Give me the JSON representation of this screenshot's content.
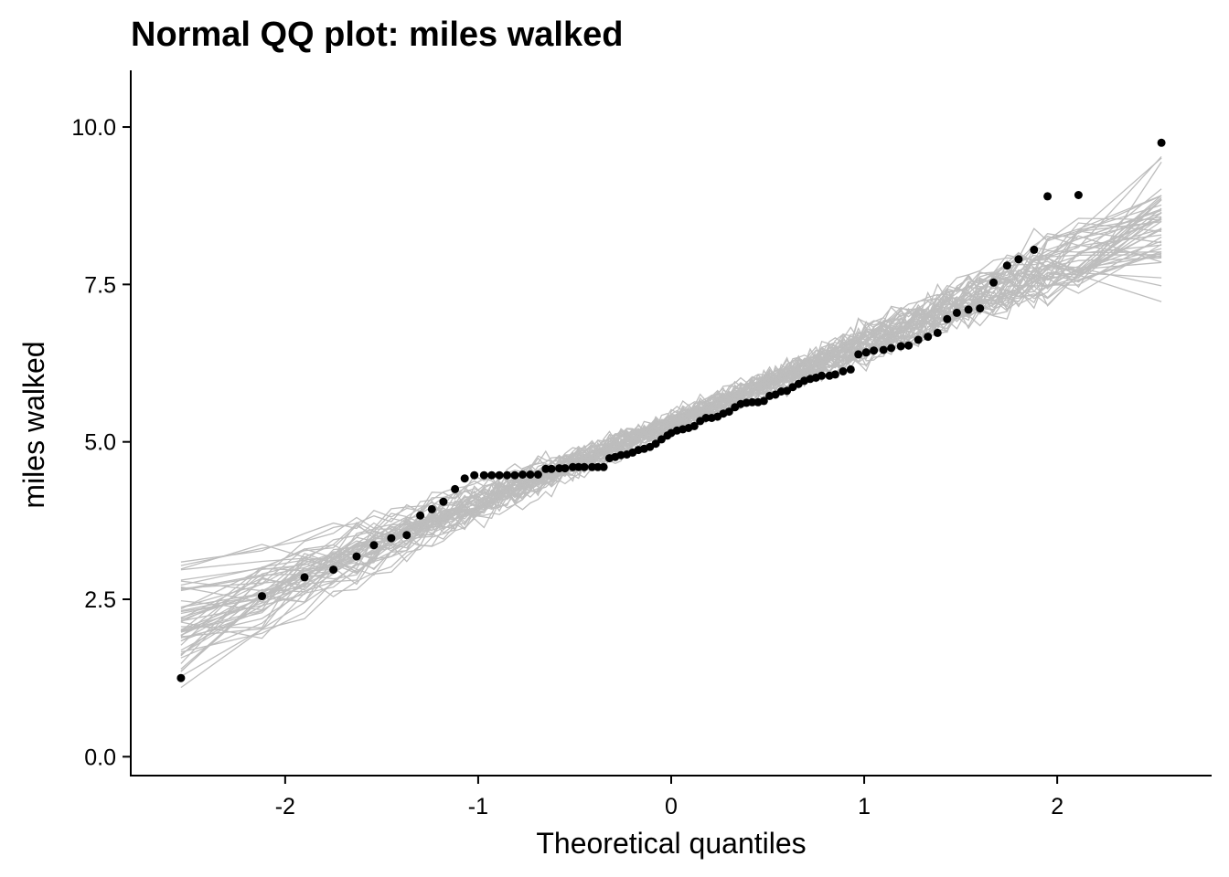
{
  "chart_data": {
    "type": "scatter",
    "title": "Normal QQ plot:  miles walked",
    "xlabel": "Theoretical quantiles",
    "ylabel": "miles walked",
    "xlim": [
      -2.8,
      2.8
    ],
    "ylim": [
      -0.3,
      10.9
    ],
    "xticks": [
      -2,
      -1,
      0,
      1,
      2
    ],
    "xtick_labels": [
      "-2",
      "-1",
      "0",
      "1",
      "2"
    ],
    "yticks": [
      0,
      2.5,
      5,
      7.5,
      10
    ],
    "ytick_labels": [
      "0.0",
      "2.5",
      "5.0",
      "7.5",
      "10.0"
    ],
    "grid": false,
    "legend": "none",
    "colors": {
      "points": "#000000",
      "reference_lines": "#bdbdbd"
    },
    "reference_band": {
      "description": "simulated normal QQ lines",
      "count": 50,
      "center_at_zero": 5.3,
      "slope": 1.25,
      "spread_range_at_min": [
        0.2,
        2.7
      ],
      "spread_range_at_max": [
        8.1,
        10.4
      ]
    },
    "series": [
      {
        "points": [
          [
            -2.54,
            1.25
          ],
          [
            -2.12,
            2.55
          ],
          [
            -1.9,
            2.85
          ],
          [
            -1.75,
            2.97
          ],
          [
            -1.63,
            3.18
          ],
          [
            -1.54,
            3.36
          ],
          [
            -1.45,
            3.47
          ],
          [
            -1.37,
            3.52
          ],
          [
            -1.3,
            3.83
          ],
          [
            -1.24,
            3.93
          ],
          [
            -1.18,
            4.05
          ],
          [
            -1.12,
            4.25
          ],
          [
            -1.07,
            4.42
          ],
          [
            -1.02,
            4.47
          ],
          [
            -0.97,
            4.47
          ],
          [
            -0.93,
            4.47
          ],
          [
            -0.89,
            4.47
          ],
          [
            -0.85,
            4.47
          ],
          [
            -0.81,
            4.47
          ],
          [
            -0.77,
            4.48
          ],
          [
            -0.73,
            4.48
          ],
          [
            -0.69,
            4.48
          ],
          [
            -0.65,
            4.57
          ],
          [
            -0.62,
            4.57
          ],
          [
            -0.58,
            4.58
          ],
          [
            -0.55,
            4.58
          ],
          [
            -0.51,
            4.6
          ],
          [
            -0.48,
            4.6
          ],
          [
            -0.45,
            4.6
          ],
          [
            -0.41,
            4.6
          ],
          [
            -0.38,
            4.6
          ],
          [
            -0.35,
            4.6
          ],
          [
            -0.32,
            4.74
          ],
          [
            -0.29,
            4.76
          ],
          [
            -0.26,
            4.79
          ],
          [
            -0.23,
            4.8
          ],
          [
            -0.2,
            4.83
          ],
          [
            -0.17,
            4.87
          ],
          [
            -0.14,
            4.89
          ],
          [
            -0.11,
            4.92
          ],
          [
            -0.08,
            4.97
          ],
          [
            -0.05,
            5.04
          ],
          [
            -0.02,
            5.1
          ],
          [
            0.0,
            5.14
          ],
          [
            0.03,
            5.18
          ],
          [
            0.06,
            5.2
          ],
          [
            0.09,
            5.22
          ],
          [
            0.12,
            5.25
          ],
          [
            0.15,
            5.33
          ],
          [
            0.18,
            5.38
          ],
          [
            0.21,
            5.38
          ],
          [
            0.24,
            5.4
          ],
          [
            0.27,
            5.45
          ],
          [
            0.3,
            5.48
          ],
          [
            0.33,
            5.55
          ],
          [
            0.36,
            5.6
          ],
          [
            0.39,
            5.62
          ],
          [
            0.42,
            5.63
          ],
          [
            0.45,
            5.63
          ],
          [
            0.48,
            5.65
          ],
          [
            0.51,
            5.73
          ],
          [
            0.54,
            5.75
          ],
          [
            0.57,
            5.8
          ],
          [
            0.6,
            5.81
          ],
          [
            0.63,
            5.87
          ],
          [
            0.66,
            5.92
          ],
          [
            0.69,
            5.97
          ],
          [
            0.72,
            6.0
          ],
          [
            0.75,
            6.02
          ],
          [
            0.78,
            6.05
          ],
          [
            0.82,
            6.05
          ],
          [
            0.85,
            6.07
          ],
          [
            0.89,
            6.12
          ],
          [
            0.93,
            6.15
          ],
          [
            0.97,
            6.39
          ],
          [
            1.01,
            6.42
          ],
          [
            1.05,
            6.45
          ],
          [
            1.1,
            6.46
          ],
          [
            1.14,
            6.49
          ],
          [
            1.19,
            6.52
          ],
          [
            1.23,
            6.53
          ],
          [
            1.28,
            6.62
          ],
          [
            1.33,
            6.67
          ],
          [
            1.38,
            6.73
          ],
          [
            1.43,
            6.95
          ],
          [
            1.48,
            7.05
          ],
          [
            1.54,
            7.1
          ],
          [
            1.6,
            7.12
          ],
          [
            1.67,
            7.53
          ],
          [
            1.74,
            7.8
          ],
          [
            1.8,
            7.9
          ],
          [
            1.88,
            8.05
          ],
          [
            1.95,
            8.9
          ],
          [
            2.11,
            8.92
          ],
          [
            2.54,
            9.75
          ]
        ]
      }
    ]
  }
}
